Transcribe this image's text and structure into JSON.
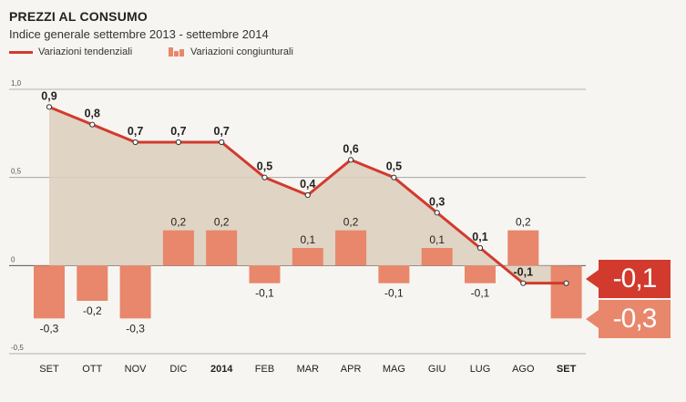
{
  "title": "PREZZI AL CONSUMO",
  "subtitle": "Indice generale settembre 2013 - settembre 2014",
  "legend": {
    "line": "Variazioni tendenziali",
    "bars": "Variazioni congiunturali"
  },
  "colors": {
    "line": "#d23a2e",
    "bars": "#e8876b",
    "area": "#ddd0bf"
  },
  "callouts": {
    "line": "-0,1",
    "bar": "-0,3"
  },
  "chart_data": {
    "type": "line",
    "categories": [
      "SET",
      "OTT",
      "NOV",
      "DIC",
      "2014",
      "FEB",
      "MAR",
      "APR",
      "MAG",
      "GIU",
      "LUG",
      "AGO",
      "SET"
    ],
    "bold_categories": [
      "2014",
      "SET"
    ],
    "ylim": [
      -0.5,
      1.0
    ],
    "yticks": [
      {
        "value": 1.0,
        "label": "1,0"
      },
      {
        "value": 0.5,
        "label": "0,5"
      },
      {
        "value": 0,
        "label": "0"
      },
      {
        "value": -0.5,
        "label": "-0,5"
      }
    ],
    "series": [
      {
        "name": "Variazioni tendenziali",
        "type": "line",
        "values": [
          0.9,
          0.8,
          0.7,
          0.7,
          0.7,
          0.5,
          0.4,
          0.6,
          0.5,
          0.3,
          0.1,
          -0.1,
          -0.1
        ],
        "labels": [
          "0,9",
          "0,8",
          "0,7",
          "0,7",
          "0,7",
          "0,5",
          "0,4",
          "0,6",
          "0,5",
          "0,3",
          "0,1",
          "-0,1",
          ""
        ]
      },
      {
        "name": "Variazioni congiunturali",
        "type": "bar",
        "values": [
          -0.3,
          -0.2,
          -0.3,
          0.2,
          0.2,
          -0.1,
          0.1,
          0.2,
          -0.1,
          0.1,
          -0.1,
          0.2,
          -0.3
        ],
        "labels": [
          "-0,3",
          "-0,2",
          "-0,3",
          "0,2",
          "0,2",
          "-0,1",
          "0,1",
          "0,2",
          "-0,1",
          "0,1",
          "-0,1",
          "0,2",
          ""
        ]
      }
    ]
  }
}
